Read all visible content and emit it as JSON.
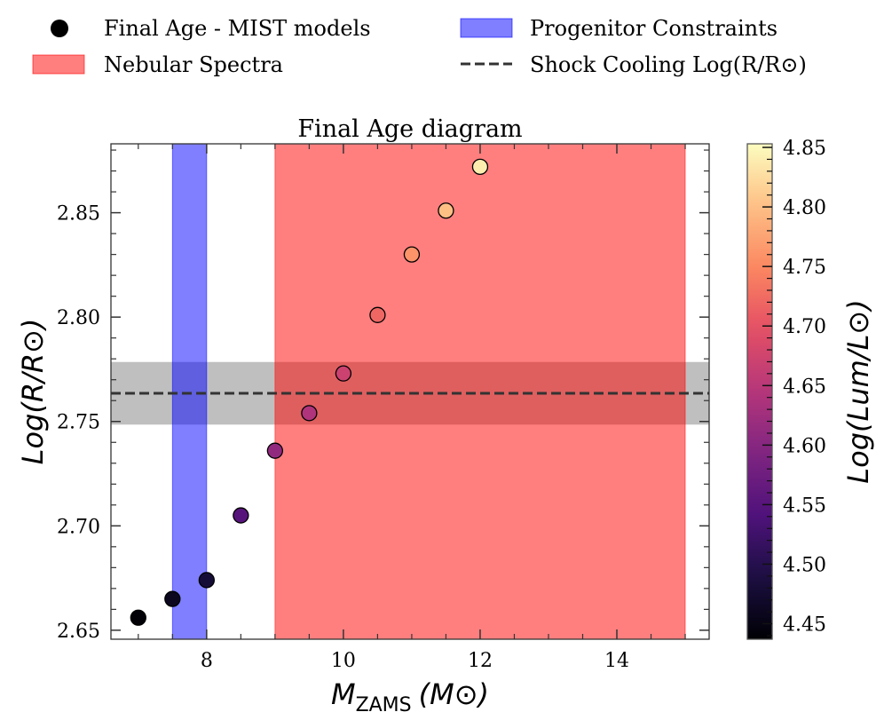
{
  "chart_data": {
    "type": "scatter",
    "title": "Final Age diagram",
    "xlabel_main": "M",
    "xlabel_sub": "ZAMS",
    "xlabel_unit": "(M⊙)",
    "ylabel": "Log(R/R⊙)",
    "xlim": [
      6.6,
      15.35
    ],
    "ylim": [
      2.6457,
      2.883
    ],
    "xticks": [
      8,
      10,
      12,
      14
    ],
    "yticks": [
      2.65,
      2.7,
      2.75,
      2.8,
      2.85
    ],
    "xtick_labels": [
      "8",
      "10",
      "12",
      "14"
    ],
    "ytick_labels": [
      "2.65",
      "2.70",
      "2.75",
      "2.80",
      "2.85"
    ],
    "points": [
      {
        "x": 7.0,
        "y": 2.656,
        "lum": 4.44
      },
      {
        "x": 7.5,
        "y": 2.665,
        "lum": 4.46
      },
      {
        "x": 8.0,
        "y": 2.674,
        "lum": 4.48
      },
      {
        "x": 8.5,
        "y": 2.705,
        "lum": 4.55
      },
      {
        "x": 9.0,
        "y": 2.736,
        "lum": 4.61
      },
      {
        "x": 9.5,
        "y": 2.754,
        "lum": 4.64
      },
      {
        "x": 10.0,
        "y": 2.773,
        "lum": 4.67
      },
      {
        "x": 10.5,
        "y": 2.801,
        "lum": 4.72
      },
      {
        "x": 11.0,
        "y": 2.83,
        "lum": 4.76
      },
      {
        "x": 11.5,
        "y": 2.851,
        "lum": 4.8
      },
      {
        "x": 12.0,
        "y": 2.872,
        "lum": 4.84
      }
    ],
    "spans": {
      "progenitor_constraints": {
        "xmin": 7.5,
        "xmax": 8.0,
        "color": "#0000ff",
        "alpha": 0.5
      },
      "nebular_spectra": {
        "xmin": 9.0,
        "xmax": 15.0,
        "color": "#ff0000",
        "alpha": 0.5
      },
      "shock_cooling_band": {
        "ymin": 2.7485,
        "ymax": 2.7785,
        "color": "#808080",
        "alpha": 0.5
      }
    },
    "shock_cooling_line": {
      "y": 2.7635,
      "color": "#333333",
      "style": "dashed"
    },
    "colorbar": {
      "label": "Log(Lum/L⊙)",
      "cmap": "magma",
      "range": [
        4.437,
        4.853
      ],
      "ticks": [
        4.45,
        4.5,
        4.55,
        4.6,
        4.65,
        4.7,
        4.75,
        4.8,
        4.85
      ],
      "tick_labels": [
        "4.45",
        "4.50",
        "4.55",
        "4.60",
        "4.65",
        "4.70",
        "4.75",
        "4.80",
        "4.85"
      ]
    },
    "legend": {
      "placement": "top",
      "entries": [
        {
          "label": "Final Age - MIST models",
          "marker": "circle"
        },
        {
          "label": "Progenitor Constraints",
          "marker": "blue-patch"
        },
        {
          "label": "Nebular Spectra",
          "marker": "red-patch"
        },
        {
          "label": "Shock Cooling Log(R/R⊙)",
          "marker": "dashed-line"
        }
      ]
    }
  }
}
